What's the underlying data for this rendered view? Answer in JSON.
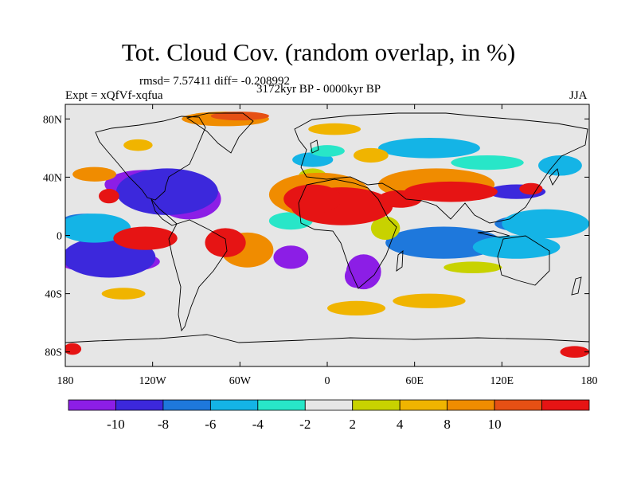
{
  "title": "Tot. Cloud Cov. (random overlap, in %)",
  "stats_label": "rmsd= 7.57411 diff= -0.208992",
  "period_label": "3172kyr BP - 0000kyr BP",
  "expt_label": "Expt = xQfVf-xqfua",
  "season_label": "JJA",
  "map": {
    "lon_ticks": [
      {
        "value": -180,
        "label": "180"
      },
      {
        "value": -120,
        "label": "120W"
      },
      {
        "value": -60,
        "label": "60W"
      },
      {
        "value": 0,
        "label": "0"
      },
      {
        "value": 60,
        "label": "60E"
      },
      {
        "value": 120,
        "label": "120E"
      },
      {
        "value": 180,
        "label": "180"
      }
    ],
    "lat_ticks": [
      {
        "value": 80,
        "label": "80N"
      },
      {
        "value": 40,
        "label": "40N"
      },
      {
        "value": 0,
        "label": "0"
      },
      {
        "value": -40,
        "label": "40S"
      },
      {
        "value": -80,
        "label": "80S"
      }
    ],
    "lon_range": [
      -180,
      180
    ],
    "lat_range": [
      -90,
      90
    ]
  },
  "colorbar": {
    "colors": [
      "#8c1ee6",
      "#3c28dc",
      "#1e78dc",
      "#14b4e6",
      "#28e6c8",
      "#e6e6e6",
      "#c8d200",
      "#f0b400",
      "#f08c00",
      "#e65014",
      "#e61414"
    ],
    "labels": [
      {
        "index": 1,
        "label": "-10"
      },
      {
        "index": 2,
        "label": "-8"
      },
      {
        "index": 3,
        "label": "-6"
      },
      {
        "index": 4,
        "label": "-4"
      },
      {
        "index": 5,
        "label": "-2"
      },
      {
        "index": 6,
        "label": "2"
      },
      {
        "index": 7,
        "label": "4"
      },
      {
        "index": 8,
        "label": "8"
      },
      {
        "index": 9,
        "label": "10"
      }
    ]
  },
  "anomaly_regions": [
    {
      "level": 0,
      "lon": -125,
      "lat": 35,
      "rlon": 28,
      "rlat": 10
    },
    {
      "level": 0,
      "lon": -95,
      "lat": 25,
      "rlon": 22,
      "rlat": 14
    },
    {
      "level": 1,
      "lon": -110,
      "lat": 30,
      "rlon": 35,
      "rlat": 16
    },
    {
      "level": 0,
      "lon": -150,
      "lat": -18,
      "rlon": 35,
      "rlat": 8
    },
    {
      "level": 1,
      "lon": -150,
      "lat": -15,
      "rlon": 32,
      "rlat": 14
    },
    {
      "level": 0,
      "lon": -25,
      "lat": -15,
      "rlon": 12,
      "rlat": 8
    },
    {
      "level": 0,
      "lon": 25,
      "lat": -25,
      "rlon": 12,
      "rlat": 12
    },
    {
      "level": 1,
      "lon": 85,
      "lat": -8,
      "rlon": 22,
      "rlat": 7
    },
    {
      "level": 1,
      "lon": 130,
      "lat": 30,
      "rlon": 20,
      "rlat": 5
    },
    {
      "level": 1,
      "lon": -165,
      "lat": 8,
      "rlon": 15,
      "rlat": 4
    },
    {
      "level": 2,
      "lon": -165,
      "lat": 8,
      "rlon": 20,
      "rlat": 7
    },
    {
      "level": 2,
      "lon": 80,
      "lat": -5,
      "rlon": 40,
      "rlat": 11
    },
    {
      "level": 2,
      "lon": 140,
      "lat": 8,
      "rlon": 25,
      "rlat": 6
    },
    {
      "level": 3,
      "lon": 70,
      "lat": 60,
      "rlon": 35,
      "rlat": 7
    },
    {
      "level": 3,
      "lon": 160,
      "lat": 48,
      "rlon": 15,
      "rlat": 7
    },
    {
      "level": 3,
      "lon": 150,
      "lat": 8,
      "rlon": 30,
      "rlat": 10
    },
    {
      "level": 3,
      "lon": -160,
      "lat": 5,
      "rlon": 25,
      "rlat": 10
    },
    {
      "level": 3,
      "lon": -10,
      "lat": 52,
      "rlon": 14,
      "rlat": 5
    },
    {
      "level": 3,
      "lon": 130,
      "lat": -8,
      "rlon": 30,
      "rlat": 8
    },
    {
      "level": 4,
      "lon": -25,
      "lat": 10,
      "rlon": 15,
      "rlat": 6
    },
    {
      "level": 4,
      "lon": 0,
      "lat": 58,
      "rlon": 12,
      "rlat": 4
    },
    {
      "level": 4,
      "lon": 110,
      "lat": 50,
      "rlon": 25,
      "rlat": 5
    },
    {
      "level": 7,
      "lon": -130,
      "lat": 62,
      "rlon": 10,
      "rlat": 4
    },
    {
      "level": 7,
      "lon": 5,
      "lat": 73,
      "rlon": 18,
      "rlat": 4
    },
    {
      "level": 7,
      "lon": 20,
      "lat": -50,
      "rlon": 20,
      "rlat": 5
    },
    {
      "level": 7,
      "lon": 70,
      "lat": -45,
      "rlon": 25,
      "rlat": 5
    },
    {
      "level": 7,
      "lon": -140,
      "lat": -40,
      "rlon": 15,
      "rlat": 4
    },
    {
      "level": 6,
      "lon": -10,
      "lat": 40,
      "rlon": 10,
      "rlat": 6
    },
    {
      "level": 6,
      "lon": 100,
      "lat": -22,
      "rlon": 20,
      "rlat": 4
    },
    {
      "level": 7,
      "lon": 30,
      "lat": 55,
      "rlon": 12,
      "rlat": 5
    },
    {
      "level": 6,
      "lon": 40,
      "lat": 5,
      "rlon": 10,
      "rlat": 8
    },
    {
      "level": 8,
      "lon": -160,
      "lat": 42,
      "rlon": 15,
      "rlat": 5
    },
    {
      "level": 8,
      "lon": -70,
      "lat": 80,
      "rlon": 30,
      "rlat": 5
    },
    {
      "level": 9,
      "lon": -60,
      "lat": 82,
      "rlon": 20,
      "rlat": 3
    },
    {
      "level": 8,
      "lon": -55,
      "lat": -10,
      "rlon": 18,
      "rlat": 12
    },
    {
      "level": 8,
      "lon": -5,
      "lat": 28,
      "rlon": 35,
      "rlat": 15
    },
    {
      "level": 8,
      "lon": 75,
      "lat": 35,
      "rlon": 40,
      "rlat": 11
    },
    {
      "level": 10,
      "lon": 10,
      "lat": 20,
      "rlon": 35,
      "rlat": 13
    },
    {
      "level": 10,
      "lon": -10,
      "lat": 25,
      "rlon": 20,
      "rlat": 10
    },
    {
      "level": 10,
      "lon": -125,
      "lat": -2,
      "rlon": 22,
      "rlat": 8
    },
    {
      "level": 10,
      "lon": -70,
      "lat": -5,
      "rlon": 14,
      "rlat": 10
    },
    {
      "level": 10,
      "lon": 85,
      "lat": 30,
      "rlon": 32,
      "rlat": 7
    },
    {
      "level": 10,
      "lon": 50,
      "lat": 25,
      "rlon": 15,
      "rlat": 6
    },
    {
      "level": 10,
      "lon": 140,
      "lat": 32,
      "rlon": 8,
      "rlat": 4
    },
    {
      "level": 10,
      "lon": -150,
      "lat": 27,
      "rlon": 7,
      "rlat": 5
    },
    {
      "level": 10,
      "lon": 170,
      "lat": -80,
      "rlon": 10,
      "rlat": 4
    },
    {
      "level": 10,
      "lon": -175,
      "lat": -78,
      "rlon": 6,
      "rlat": 4
    },
    {
      "level": 0,
      "lon": 20,
      "lat": -28,
      "rlon": 8,
      "rlat": 8
    }
  ]
}
